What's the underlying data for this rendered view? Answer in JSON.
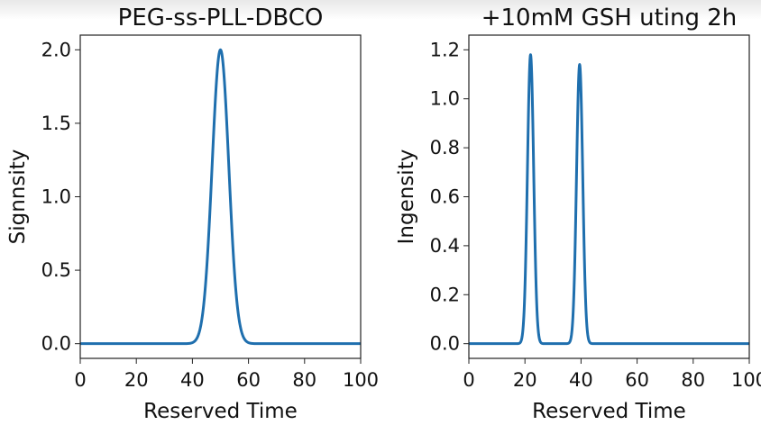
{
  "chart_data": [
    {
      "type": "line",
      "title": "PEG-ss-PLL-DBCO",
      "xlabel": "Reserved Time",
      "ylabel": "Signnsity",
      "xlim": [
        0,
        100
      ],
      "ylim": [
        -0.1,
        2.1
      ],
      "xticks": [
        "0",
        "20",
        "40",
        "60",
        "80",
        "100"
      ],
      "yticks": [
        "0.0",
        "0.5",
        "1.0",
        "1.5",
        "2.0"
      ],
      "grid": false,
      "color": "#1f6fae",
      "peaks": [
        {
          "center": 50,
          "height": 2.0,
          "fwhm": 7
        }
      ]
    },
    {
      "type": "line",
      "title": "+10mM GSH uting 2h",
      "xlabel": "Reserved Time",
      "ylabel": "Ingensity",
      "xlim": [
        0,
        100
      ],
      "ylim": [
        -0.06,
        1.26
      ],
      "xticks": [
        "0",
        "20",
        "40",
        "60",
        "80",
        "100"
      ],
      "yticks": [
        "0.0",
        "0.2",
        "0.4",
        "0.6",
        "0.8",
        "1.0",
        "1.2"
      ],
      "grid": false,
      "color": "#1f6fae",
      "peaks": [
        {
          "center": 22,
          "height": 1.18,
          "fwhm": 2.6
        },
        {
          "center": 39.5,
          "height": 1.14,
          "fwhm": 2.6
        }
      ]
    }
  ]
}
